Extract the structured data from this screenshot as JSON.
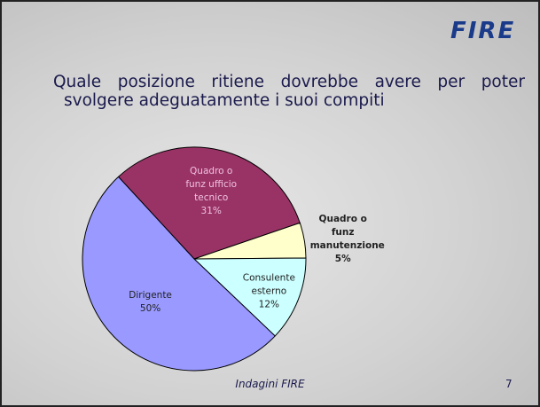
{
  "header": {
    "logo": "FIRE"
  },
  "chart_data": {
    "type": "pie",
    "title": "Quale posizione ritiene dovrebbe avere per poter svolgere adeguatamente i suoi compiti",
    "categories": [
      "Quadro o funz ufficio tecnico",
      "Quadro o funz manutenzione",
      "Consulente esterno",
      "Dirigente"
    ],
    "values": [
      31,
      5,
      12,
      50
    ],
    "value_labels": [
      "31%",
      "5%",
      "12%",
      "50%"
    ],
    "colors": [
      "#993366",
      "#ffffcc",
      "#ccffff",
      "#9999ff"
    ]
  },
  "footer": {
    "text": "Indagini FIRE",
    "page": "7"
  }
}
